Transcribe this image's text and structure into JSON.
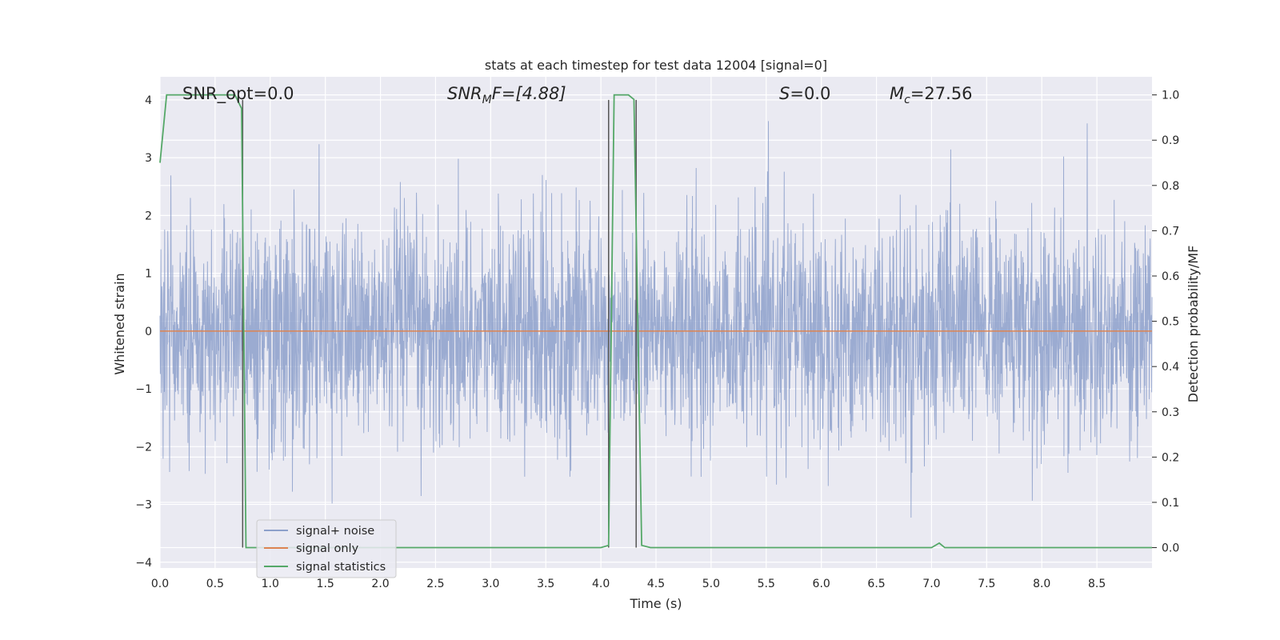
{
  "chart_data": {
    "type": "line",
    "title": "stats at each timestep for test data 12004 [signal=0]",
    "xlabel": "Time (s)",
    "ylabel": "Whitened strain",
    "y2label": "Detection probability/MF",
    "xlim": [
      0,
      9
    ],
    "ylim": [
      -4.1,
      4.4
    ],
    "y2lim": [
      -0.045,
      1.04
    ],
    "xticks": [
      "0.0",
      "0.5",
      "1.0",
      "1.5",
      "2.0",
      "2.5",
      "3.0",
      "3.5",
      "4.0",
      "4.5",
      "5.0",
      "5.5",
      "6.0",
      "6.5",
      "7.0",
      "7.5",
      "8.0",
      "8.5"
    ],
    "yticks": [
      "−4",
      "−3",
      "−2",
      "−1",
      "0",
      "1",
      "2",
      "3",
      "4"
    ],
    "y2ticks": [
      "0.0",
      "0.1",
      "0.2",
      "0.3",
      "0.4",
      "0.5",
      "0.6",
      "0.7",
      "0.8",
      "0.9",
      "1.0"
    ],
    "grid": true,
    "legend_position": "lower-left",
    "annotations": {
      "snr_opt": "SNR_opt=0.0",
      "snr_mf_base": "SNR",
      "snr_mf_sub": "M",
      "snr_mf_rest": "F=[4.88]",
      "s_label": "S",
      "s_value": "=0.0",
      "mc_base": "M",
      "mc_sub": "c",
      "mc_value": "=27.56"
    },
    "series": [
      {
        "name": "signal+ noise",
        "color": "#8da0cb",
        "kind": "noise",
        "approx_std": 0.95,
        "approx_range": [
          -3.7,
          4.0
        ]
      },
      {
        "name": "signal only",
        "color": "#dd8452",
        "kind": "constant",
        "value": 0
      },
      {
        "name": "signal statistics",
        "color": "#55a868",
        "axis": "right",
        "points": [
          [
            0,
            0.85
          ],
          [
            0.06,
            1.0
          ],
          [
            0.12,
            1.0
          ],
          [
            0.5,
            1.0
          ],
          [
            0.68,
            1.0
          ],
          [
            0.74,
            0.97
          ],
          [
            0.78,
            0.0
          ],
          [
            0.85,
            0.0
          ],
          [
            4.0,
            0.0
          ],
          [
            4.07,
            0.005
          ],
          [
            4.12,
            1.0
          ],
          [
            4.25,
            1.0
          ],
          [
            4.3,
            0.99
          ],
          [
            4.37,
            0.005
          ],
          [
            4.45,
            0.0
          ],
          [
            7.0,
            0.0
          ],
          [
            7.07,
            0.01
          ],
          [
            7.12,
            0.0
          ],
          [
            9.0,
            0.0
          ]
        ]
      }
    ],
    "vlines": [
      {
        "x": 0.75,
        "color": "#555555"
      },
      {
        "x": 4.07,
        "color": "#555555"
      },
      {
        "x": 4.32,
        "color": "#555555"
      }
    ]
  }
}
